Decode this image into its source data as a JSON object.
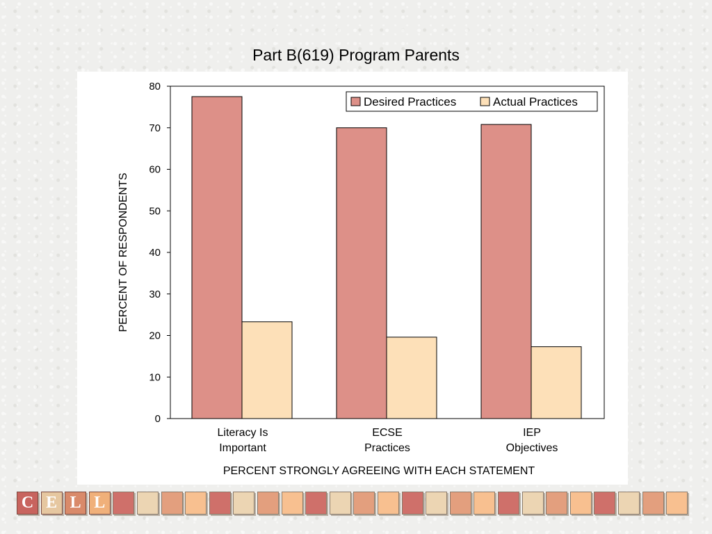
{
  "chart_data": {
    "type": "bar",
    "title": "Part B(619) Program Parents",
    "categories": [
      "Literacy Is Important",
      "ECSE Practices",
      "IEP Objectives"
    ],
    "category_lines": [
      [
        "Literacy Is",
        "Important"
      ],
      [
        "ECSE",
        "Practices"
      ],
      [
        "IEP",
        "Objectives"
      ]
    ],
    "series": [
      {
        "name": "Desired Practices",
        "values": [
          77.5,
          70.0,
          70.8
        ],
        "color": "#dd9088"
      },
      {
        "name": "Actual Practices",
        "values": [
          23.3,
          19.6,
          17.3
        ],
        "color": "#fde0b8"
      }
    ],
    "xlabel": "PERCENT STRONGLY AGREEING WITH EACH STATEMENT",
    "ylabel": "PERCENT OF RESPONDENTS",
    "ylim": [
      0,
      80
    ],
    "yticks": [
      0,
      10,
      20,
      30,
      40,
      50,
      60,
      70,
      80
    ],
    "grid": false,
    "legend_position": "top-right"
  },
  "footer": {
    "logo_letters": [
      "C",
      "E",
      "L",
      "L"
    ],
    "tile_colors": [
      "#cf706a",
      "#ecd5b3",
      "#e39f7e",
      "#f8c090"
    ]
  }
}
